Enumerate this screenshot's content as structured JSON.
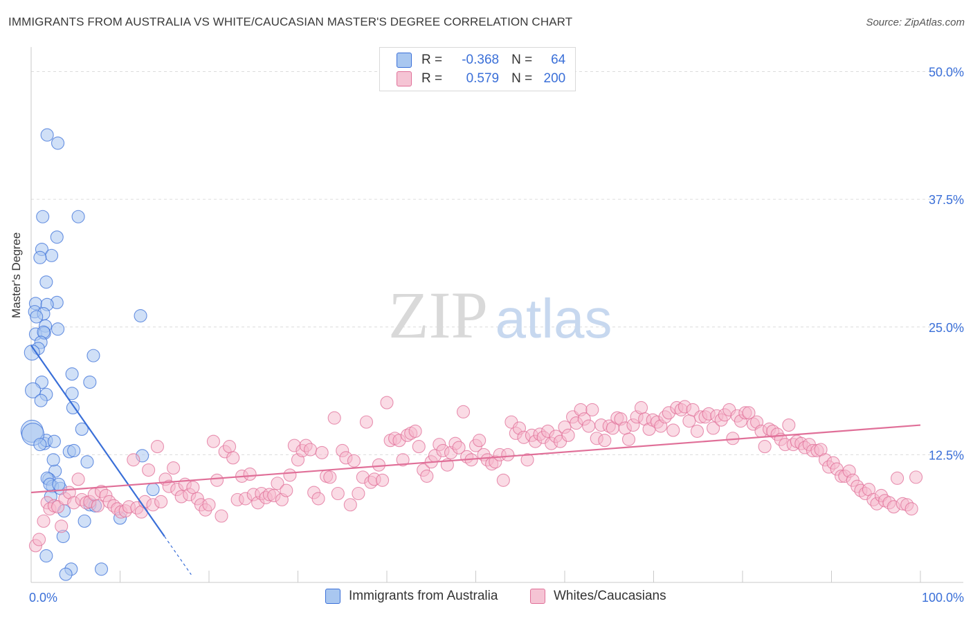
{
  "title": "IMMIGRANTS FROM AUSTRALIA VS WHITE/CAUCASIAN MASTER'S DEGREE CORRELATION CHART",
  "source": "Source: ZipAtlas.com",
  "watermark": {
    "zip": "ZIP",
    "atlas": "atlas"
  },
  "legend": {
    "rows": [
      {
        "r_label": "R =",
        "r_value": "-0.368",
        "n_label": "N =",
        "n_value": "64"
      },
      {
        "r_label": "R =",
        "r_value": "0.579",
        "n_label": "N =",
        "n_value": "200"
      }
    ]
  },
  "bottom_legend": [
    "Immigrants from Australia",
    "Whites/Caucasians"
  ],
  "chart_data": {
    "type": "scatter",
    "title": "IMMIGRANTS FROM AUSTRALIA VS WHITE/CAUCASIAN MASTER'S DEGREE CORRELATION CHART",
    "xlabel": "",
    "ylabel": "Master's Degree",
    "xlim": [
      0,
      100
    ],
    "ylim": [
      0,
      52
    ],
    "x_tick_labels": [
      "0.0%",
      "100.0%"
    ],
    "y_ticks": [
      12.5,
      25,
      37.5,
      50
    ],
    "y_tick_labels": [
      "12.5%",
      "25.0%",
      "37.5%",
      "50.0%"
    ],
    "colors": {
      "blue": "#3a6fd8",
      "pink": "#e06f98",
      "blue_fill": "#a9c7f0",
      "pink_fill": "#f5b7cb"
    },
    "series": [
      {
        "name": "Immigrants from Australia",
        "color": "blue",
        "trend": {
          "x": [
            0,
            15
          ],
          "y": [
            23.2,
            4.5
          ],
          "dash_x_end": 18
        },
        "points": [
          [
            1.8,
            43.8
          ],
          [
            3.0,
            43.0
          ],
          [
            1.3,
            35.8
          ],
          [
            5.3,
            35.8
          ],
          [
            2.9,
            33.8
          ],
          [
            1.2,
            32.6
          ],
          [
            2.3,
            32.0
          ],
          [
            1.0,
            31.8
          ],
          [
            1.7,
            29.4
          ],
          [
            0.5,
            27.3
          ],
          [
            2.9,
            27.4
          ],
          [
            1.8,
            27.2
          ],
          [
            0.4,
            26.5
          ],
          [
            1.4,
            26.3
          ],
          [
            0.6,
            26.0
          ],
          [
            12.3,
            26.1
          ],
          [
            1.6,
            25.1
          ],
          [
            3.0,
            24.8
          ],
          [
            0.5,
            24.3
          ],
          [
            1.5,
            24.4
          ],
          [
            1.4,
            24.5
          ],
          [
            1.1,
            23.5
          ],
          [
            0.8,
            22.9
          ],
          [
            0.1,
            22.5
          ],
          [
            7.0,
            22.2
          ],
          [
            4.6,
            20.4
          ],
          [
            6.6,
            19.6
          ],
          [
            1.2,
            19.6
          ],
          [
            0.2,
            18.8
          ],
          [
            4.6,
            18.5
          ],
          [
            1.7,
            18.4
          ],
          [
            1.1,
            17.8
          ],
          [
            4.7,
            17.1
          ],
          [
            5.7,
            15.0
          ],
          [
            0.1,
            14.8
          ],
          [
            1.5,
            13.6
          ],
          [
            1.7,
            13.9
          ],
          [
            2.6,
            13.8
          ],
          [
            4.3,
            12.8
          ],
          [
            4.8,
            12.9
          ],
          [
            12.5,
            12.4
          ],
          [
            6.3,
            11.8
          ],
          [
            2.7,
            10.9
          ],
          [
            2.0,
            10.1
          ],
          [
            1.8,
            10.2
          ],
          [
            2.4,
            9.4
          ],
          [
            2.1,
            9.6
          ],
          [
            3.3,
            9.2
          ],
          [
            13.7,
            9.1
          ],
          [
            2.2,
            8.4
          ],
          [
            6.6,
            7.6
          ],
          [
            7.2,
            7.5
          ],
          [
            3.7,
            7.0
          ],
          [
            10.0,
            6.3
          ],
          [
            6.0,
            6.0
          ],
          [
            3.6,
            4.5
          ],
          [
            1.7,
            2.6
          ],
          [
            4.5,
            1.3
          ],
          [
            3.9,
            0.8
          ],
          [
            7.9,
            1.3
          ],
          [
            0.2,
            14.5
          ],
          [
            1.0,
            13.5
          ],
          [
            3.1,
            9.6
          ],
          [
            2.5,
            12.0
          ]
        ]
      },
      {
        "name": "Whites/Caucasians",
        "color": "pink",
        "trend": {
          "x": [
            0,
            100
          ],
          "y": [
            8.8,
            15.4
          ]
        },
        "points": [
          [
            0.5,
            3.6
          ],
          [
            0.9,
            4.2
          ],
          [
            1.4,
            6.0
          ],
          [
            1.8,
            7.8
          ],
          [
            2.1,
            7.2
          ],
          [
            2.6,
            7.5
          ],
          [
            3.0,
            7.4
          ],
          [
            3.4,
            5.5
          ],
          [
            3.8,
            8.2
          ],
          [
            4.3,
            8.8
          ],
          [
            4.8,
            7.8
          ],
          [
            5.3,
            10.1
          ],
          [
            5.7,
            8.1
          ],
          [
            6.2,
            7.8
          ],
          [
            6.6,
            7.9
          ],
          [
            7.1,
            8.6
          ],
          [
            7.5,
            7.5
          ],
          [
            7.9,
            8.9
          ],
          [
            8.4,
            8.5
          ],
          [
            8.8,
            7.9
          ],
          [
            9.3,
            7.5
          ],
          [
            9.7,
            7.2
          ],
          [
            10.1,
            6.9
          ],
          [
            10.6,
            7.0
          ],
          [
            11.0,
            7.4
          ],
          [
            11.5,
            12.0
          ],
          [
            11.9,
            7.3
          ],
          [
            12.4,
            6.9
          ],
          [
            12.8,
            7.9
          ],
          [
            13.2,
            11.0
          ],
          [
            13.7,
            7.6
          ],
          [
            14.2,
            13.3
          ],
          [
            14.6,
            7.9
          ],
          [
            15.1,
            10.1
          ],
          [
            15.5,
            9.4
          ],
          [
            16.0,
            11.2
          ],
          [
            16.4,
            9.1
          ],
          [
            16.9,
            8.4
          ],
          [
            17.3,
            9.6
          ],
          [
            17.8,
            8.6
          ],
          [
            18.2,
            9.3
          ],
          [
            18.7,
            8.2
          ],
          [
            19.1,
            7.6
          ],
          [
            19.6,
            7.1
          ],
          [
            20.0,
            7.6
          ],
          [
            20.5,
            13.8
          ],
          [
            20.9,
            10.0
          ],
          [
            21.4,
            6.5
          ],
          [
            21.8,
            12.8
          ],
          [
            22.3,
            13.3
          ],
          [
            22.7,
            12.2
          ],
          [
            23.2,
            8.1
          ],
          [
            23.7,
            10.4
          ],
          [
            24.1,
            8.2
          ],
          [
            24.6,
            10.6
          ],
          [
            25.0,
            8.6
          ],
          [
            25.5,
            7.8
          ],
          [
            25.9,
            8.7
          ],
          [
            26.4,
            8.3
          ],
          [
            26.8,
            8.6
          ],
          [
            27.3,
            8.5
          ],
          [
            27.7,
            9.7
          ],
          [
            28.2,
            8.1
          ],
          [
            28.7,
            9.0
          ],
          [
            29.1,
            10.5
          ],
          [
            29.6,
            13.4
          ],
          [
            30.0,
            12.0
          ],
          [
            30.5,
            12.9
          ],
          [
            30.9,
            13.4
          ],
          [
            31.4,
            13.0
          ],
          [
            31.8,
            8.8
          ],
          [
            32.3,
            8.2
          ],
          [
            32.7,
            12.7
          ],
          [
            33.2,
            10.4
          ],
          [
            33.6,
            10.3
          ],
          [
            34.1,
            16.1
          ],
          [
            34.5,
            8.7
          ],
          [
            35.0,
            12.9
          ],
          [
            35.4,
            12.2
          ],
          [
            35.9,
            7.6
          ],
          [
            36.3,
            11.9
          ],
          [
            36.8,
            8.7
          ],
          [
            37.3,
            10.3
          ],
          [
            37.7,
            15.7
          ],
          [
            38.2,
            9.8
          ],
          [
            38.6,
            10.1
          ],
          [
            39.1,
            11.5
          ],
          [
            39.5,
            10.0
          ],
          [
            40.0,
            17.6
          ],
          [
            40.4,
            13.9
          ],
          [
            40.9,
            14.1
          ],
          [
            41.4,
            13.9
          ],
          [
            41.8,
            12.0
          ],
          [
            42.3,
            14.4
          ],
          [
            42.7,
            14.6
          ],
          [
            43.2,
            14.8
          ],
          [
            43.6,
            13.3
          ],
          [
            44.1,
            11.0
          ],
          [
            44.5,
            10.4
          ],
          [
            45.0,
            11.8
          ],
          [
            45.4,
            12.4
          ],
          [
            45.9,
            13.5
          ],
          [
            46.3,
            12.9
          ],
          [
            46.8,
            11.5
          ],
          [
            47.2,
            12.7
          ],
          [
            47.7,
            13.6
          ],
          [
            48.1,
            13.2
          ],
          [
            48.6,
            16.7
          ],
          [
            49.0,
            12.3
          ],
          [
            49.5,
            12.0
          ],
          [
            50.0,
            13.4
          ],
          [
            50.4,
            13.9
          ],
          [
            50.9,
            12.5
          ],
          [
            51.3,
            12.0
          ],
          [
            51.8,
            11.6
          ],
          [
            52.2,
            11.8
          ],
          [
            52.7,
            12.5
          ],
          [
            53.1,
            10.0
          ],
          [
            53.6,
            12.5
          ],
          [
            54.0,
            15.7
          ],
          [
            54.5,
            14.6
          ],
          [
            54.9,
            15.1
          ],
          [
            55.4,
            14.2
          ],
          [
            55.8,
            12.0
          ],
          [
            56.3,
            14.4
          ],
          [
            56.7,
            13.8
          ],
          [
            57.2,
            14.5
          ],
          [
            57.6,
            14.2
          ],
          [
            58.1,
            14.8
          ],
          [
            58.5,
            13.6
          ],
          [
            59.0,
            14.3
          ],
          [
            59.5,
            13.8
          ],
          [
            60.0,
            15.2
          ],
          [
            60.4,
            14.4
          ],
          [
            60.9,
            16.2
          ],
          [
            61.3,
            15.6
          ],
          [
            61.8,
            16.9
          ],
          [
            62.2,
            16.0
          ],
          [
            62.7,
            15.3
          ],
          [
            63.1,
            16.9
          ],
          [
            63.6,
            14.1
          ],
          [
            64.1,
            15.4
          ],
          [
            64.5,
            13.9
          ],
          [
            65.0,
            15.3
          ],
          [
            65.4,
            15.1
          ],
          [
            65.9,
            16.1
          ],
          [
            66.3,
            16.0
          ],
          [
            66.8,
            15.1
          ],
          [
            67.2,
            14.0
          ],
          [
            67.7,
            15.4
          ],
          [
            68.1,
            16.2
          ],
          [
            68.6,
            17.1
          ],
          [
            69.0,
            16.0
          ],
          [
            69.5,
            15.0
          ],
          [
            69.9,
            15.9
          ],
          [
            70.4,
            15.7
          ],
          [
            70.8,
            15.3
          ],
          [
            71.3,
            16.2
          ],
          [
            71.7,
            16.6
          ],
          [
            72.2,
            14.9
          ],
          [
            72.6,
            17.1
          ],
          [
            73.1,
            16.9
          ],
          [
            73.5,
            17.2
          ],
          [
            74.0,
            15.8
          ],
          [
            74.4,
            16.9
          ],
          [
            74.9,
            14.8
          ],
          [
            75.3,
            16.2
          ],
          [
            75.8,
            16.2
          ],
          [
            76.2,
            16.5
          ],
          [
            76.7,
            15.1
          ],
          [
            77.1,
            16.3
          ],
          [
            77.6,
            15.9
          ],
          [
            78.0,
            16.4
          ],
          [
            78.5,
            16.9
          ],
          [
            78.9,
            14.1
          ],
          [
            79.4,
            16.3
          ],
          [
            79.8,
            15.8
          ],
          [
            80.3,
            16.6
          ],
          [
            80.7,
            16.6
          ],
          [
            81.2,
            15.5
          ],
          [
            81.6,
            15.7
          ],
          [
            82.1,
            14.8
          ],
          [
            82.5,
            13.3
          ],
          [
            83.0,
            15.0
          ],
          [
            83.4,
            14.8
          ],
          [
            83.9,
            14.5
          ],
          [
            84.3,
            14.0
          ],
          [
            84.8,
            13.5
          ],
          [
            85.2,
            15.4
          ],
          [
            85.7,
            13.5
          ],
          [
            86.1,
            13.8
          ],
          [
            86.6,
            13.6
          ],
          [
            87.0,
            13.2
          ],
          [
            87.5,
            13.5
          ],
          [
            87.9,
            12.9
          ],
          [
            88.4,
            12.9
          ],
          [
            88.8,
            13.0
          ],
          [
            89.3,
            12.0
          ],
          [
            89.7,
            11.3
          ],
          [
            90.2,
            11.7
          ],
          [
            90.6,
            11.1
          ],
          [
            91.1,
            10.4
          ],
          [
            91.5,
            10.4
          ],
          [
            92.0,
            10.9
          ],
          [
            92.4,
            10.0
          ],
          [
            92.9,
            9.4
          ],
          [
            93.3,
            9.0
          ],
          [
            93.8,
            8.7
          ],
          [
            94.2,
            9.1
          ],
          [
            94.7,
            8.1
          ],
          [
            95.1,
            7.7
          ],
          [
            95.6,
            8.5
          ],
          [
            96.0,
            8.0
          ],
          [
            96.5,
            7.8
          ],
          [
            97.0,
            7.4
          ],
          [
            97.4,
            10.2
          ],
          [
            98.0,
            7.7
          ],
          [
            98.5,
            7.6
          ],
          [
            99.0,
            7.2
          ],
          [
            99.5,
            10.3
          ]
        ]
      }
    ]
  }
}
